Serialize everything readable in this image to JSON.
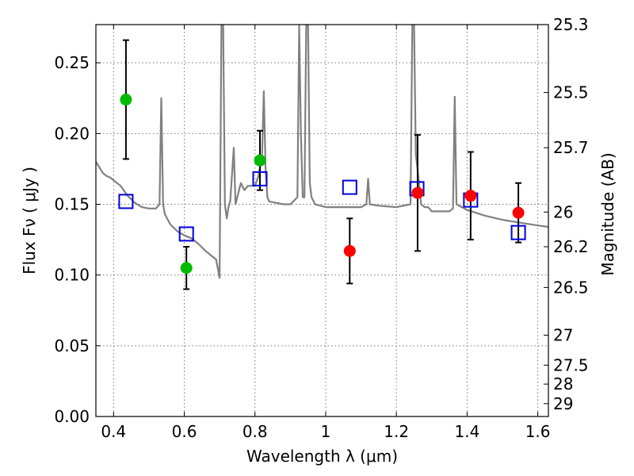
{
  "chart_data": {
    "type": "scatter",
    "title": "",
    "xlabel": "Wavelength  λ (μm)",
    "ylabel": "Flux  Fν (  μJy )",
    "ylabel_right": "Magnitude (AB)",
    "xlim": [
      0.35,
      1.63
    ],
    "ylim": [
      0.0,
      0.277
    ],
    "grid": true,
    "x_ticks": [
      0.4,
      0.6,
      0.8,
      1.0,
      1.2,
      1.4,
      1.6
    ],
    "x_tick_labels": [
      "0.4",
      "0.6",
      "0.8",
      "1",
      "1.2",
      "1.4",
      "1.6"
    ],
    "y_ticks": [
      0.0,
      0.05,
      0.1,
      0.15,
      0.2,
      0.25
    ],
    "y_tick_labels": [
      "0.00",
      "0.05",
      "0.10",
      "0.15",
      "0.20",
      "0.25"
    ],
    "right_axis_labels": [
      "25.3",
      "25.5",
      "25.7",
      "26",
      "26.2",
      "26.5",
      "27",
      "27.5",
      "28",
      "29"
    ],
    "right_axis_flux": [
      0.277,
      0.229,
      0.19,
      0.1445,
      0.12,
      0.0912,
      0.0575,
      0.0363,
      0.0229,
      0.0091
    ],
    "series": [
      {
        "kind": "observed-green",
        "color": "#00bb00",
        "x": [
          0.435,
          0.606,
          0.814
        ],
        "y": [
          0.224,
          0.105,
          0.181
        ],
        "err_low": [
          0.182,
          0.09,
          0.16
        ],
        "err_high": [
          0.266,
          0.12,
          0.202
        ]
      },
      {
        "kind": "observed-red",
        "color": "#ff0000",
        "x": [
          1.068,
          1.26,
          1.41,
          1.545
        ],
        "y": [
          0.117,
          0.158,
          0.156,
          0.144
        ],
        "err_low": [
          0.094,
          0.117,
          0.125,
          0.123
        ],
        "err_high": [
          0.14,
          0.199,
          0.187,
          0.165
        ]
      },
      {
        "kind": "model-synthetic",
        "color": "#0000dd",
        "x": [
          0.435,
          0.606,
          0.814,
          1.068,
          1.258,
          1.41,
          1.545
        ],
        "y": [
          0.152,
          0.129,
          0.168,
          0.162,
          0.161,
          0.153,
          0.13
        ]
      },
      {
        "kind": "model-spectrum",
        "color": "#808080",
        "x": [
          0.35,
          0.36,
          0.37,
          0.38,
          0.39,
          0.4,
          0.42,
          0.44,
          0.46,
          0.48,
          0.5,
          0.52,
          0.53,
          0.535,
          0.54,
          0.545,
          0.56,
          0.58,
          0.6,
          0.62,
          0.64,
          0.66,
          0.68,
          0.69,
          0.7,
          0.705,
          0.71,
          0.715,
          0.72,
          0.725,
          0.73,
          0.74,
          0.745,
          0.75,
          0.76,
          0.77,
          0.78,
          0.8,
          0.81,
          0.82,
          0.825,
          0.83,
          0.835,
          0.84,
          0.86,
          0.88,
          0.9,
          0.92,
          0.925,
          0.93,
          0.935,
          0.94,
          0.945,
          0.95,
          0.955,
          0.96,
          0.97,
          1.0,
          1.05,
          1.1,
          1.115,
          1.12,
          1.125,
          1.15,
          1.2,
          1.24,
          1.245,
          1.25,
          1.255,
          1.26,
          1.27,
          1.28,
          1.29,
          1.3,
          1.35,
          1.36,
          1.365,
          1.37,
          1.4,
          1.45,
          1.5,
          1.55,
          1.6,
          1.63
        ],
        "y": [
          0.18,
          0.176,
          0.172,
          0.17,
          0.169,
          0.167,
          0.163,
          0.156,
          0.151,
          0.148,
          0.147,
          0.147,
          0.15,
          0.225,
          0.15,
          0.143,
          0.136,
          0.131,
          0.128,
          0.126,
          0.122,
          0.117,
          0.113,
          0.111,
          0.098,
          0.277,
          0.277,
          0.15,
          0.14,
          0.148,
          0.152,
          0.19,
          0.15,
          0.155,
          0.165,
          0.16,
          0.163,
          0.163,
          0.17,
          0.185,
          0.23,
          0.175,
          0.155,
          0.152,
          0.151,
          0.15,
          0.15,
          0.155,
          0.277,
          0.2,
          0.155,
          0.155,
          0.277,
          0.277,
          0.165,
          0.155,
          0.15,
          0.148,
          0.148,
          0.148,
          0.15,
          0.168,
          0.15,
          0.149,
          0.148,
          0.15,
          0.277,
          0.277,
          0.185,
          0.175,
          0.15,
          0.148,
          0.148,
          0.145,
          0.145,
          0.147,
          0.226,
          0.15,
          0.146,
          0.142,
          0.139,
          0.137,
          0.135,
          0.134
        ]
      }
    ]
  }
}
